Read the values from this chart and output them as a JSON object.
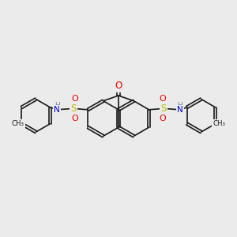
{
  "bg_color": "#ebebeb",
  "bond_color": "#1a1a1a",
  "bond_lw": 1.2,
  "O_color": "#ee0000",
  "N_color": "#0000cc",
  "S_color": "#bbbb00",
  "H_color": "#6688aa",
  "ring_r": 0.75,
  "tolyl_r": 0.7,
  "xlim": [
    0,
    10
  ],
  "ylim": [
    0,
    10
  ]
}
